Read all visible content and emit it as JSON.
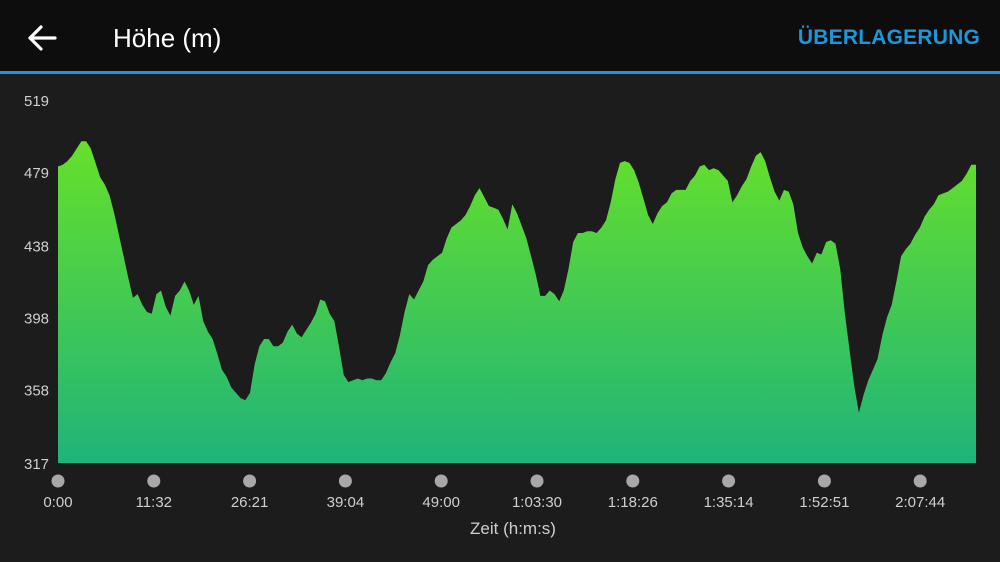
{
  "header": {
    "back_icon": "arrow-left-icon",
    "title": "Höhe (m)",
    "overlay_label": "ÜBERLAGERUNG"
  },
  "colors": {
    "accent": "#1e96d8",
    "area_top": "#66e02a",
    "area_bottom": "#1fb47a",
    "background": "#1c1c1c",
    "header_bg": "#0d0d0d"
  },
  "chart_data": {
    "type": "area",
    "title": "Höhe (m)",
    "xlabel": "Zeit (h:m:s)",
    "ylabel": "",
    "ylim": [
      317,
      519
    ],
    "y_ticks": [
      "519",
      "479",
      "438",
      "398",
      "358",
      "317"
    ],
    "y_tick_values": [
      519,
      479,
      438,
      398,
      358,
      317
    ],
    "x_ticks": [
      "0:00",
      "11:32",
      "26:21",
      "39:04",
      "49:00",
      "1:03:30",
      "1:18:26",
      "1:35:14",
      "1:52:51",
      "2:07:44"
    ],
    "grid": false,
    "legend": "none",
    "series": [
      {
        "values": [
          482,
          483,
          485,
          488,
          492,
          496,
          496,
          492,
          484,
          476,
          472,
          466,
          456,
          444,
          432,
          420,
          409,
          411,
          405,
          401,
          400,
          411,
          413,
          404,
          399,
          410,
          413,
          418,
          413,
          405,
          410,
          396,
          390,
          386,
          378,
          369,
          365,
          359,
          356,
          353,
          352,
          356,
          372,
          382,
          386,
          386,
          382,
          382,
          384,
          390,
          394,
          389,
          387,
          391,
          395,
          400,
          408,
          407,
          400,
          396,
          382,
          366,
          362,
          363,
          364,
          363,
          364,
          364,
          363,
          363,
          367,
          373,
          378,
          388,
          401,
          411,
          408,
          413,
          418,
          427,
          430,
          432,
          434,
          442,
          448,
          450,
          452,
          455,
          460,
          466,
          470,
          465,
          460,
          459,
          458,
          453,
          447,
          461,
          456,
          449,
          442,
          432,
          422,
          410,
          410,
          413,
          411,
          407,
          413,
          425,
          440,
          445,
          445,
          446,
          446,
          445,
          448,
          452,
          462,
          475,
          484,
          485,
          484,
          480,
          473,
          464,
          455,
          450,
          456,
          460,
          462,
          467,
          469,
          469,
          469,
          474,
          477,
          482,
          483,
          480,
          481,
          480,
          477,
          474,
          462,
          466,
          471,
          475,
          482,
          488,
          490,
          485,
          476,
          468,
          463,
          469,
          468,
          461,
          445,
          437,
          432,
          428,
          434,
          433,
          440,
          441,
          439,
          425,
          400,
          380,
          360,
          345,
          355,
          363,
          369,
          375,
          388,
          398,
          405,
          418,
          432,
          436,
          439,
          444,
          448,
          454,
          458,
          461,
          466,
          467,
          468,
          470,
          472,
          474,
          478,
          483,
          483
        ]
      }
    ]
  }
}
